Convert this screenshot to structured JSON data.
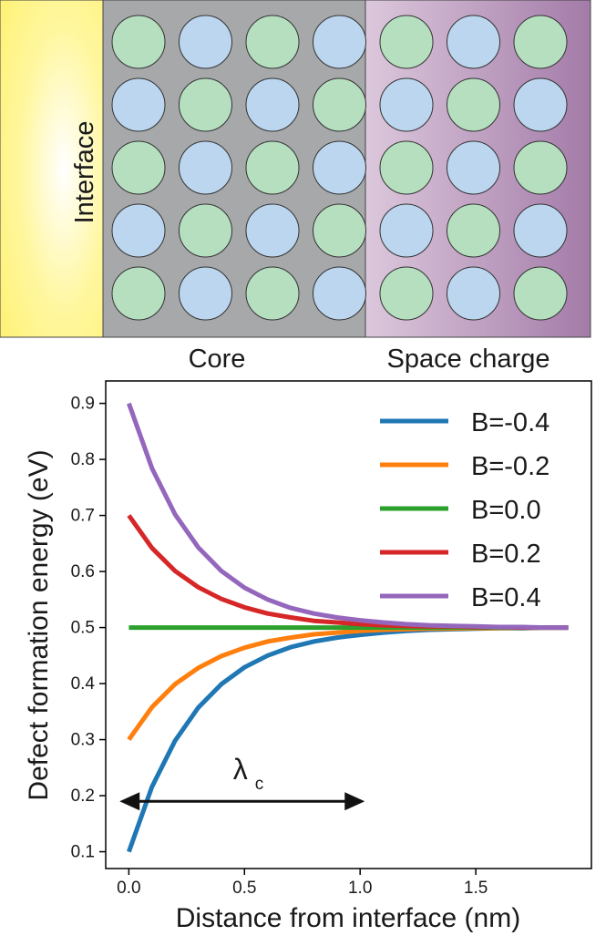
{
  "schematic": {
    "interface_label": "Interface",
    "core_label": "Core",
    "space_charge_label": "Space charge",
    "rows": 5,
    "cols": 7,
    "colors": {
      "interface_yellow": "#fff27a",
      "core_gray": "#a7a8aa",
      "space_charge_light": "#dcc8dc",
      "space_charge_dark": "#a37ba8",
      "green_atom": "#b6dfc0",
      "blue_atom": "#bcd6ef"
    }
  },
  "chart_data": {
    "type": "line",
    "title": "",
    "xlabel": "Distance from interface (nm)",
    "ylabel": "Defect formation energy (eV)",
    "xlim": [
      -0.1,
      2.0
    ],
    "ylim": [
      0.07,
      0.94
    ],
    "x_ticks": [
      0.0,
      0.5,
      1.0,
      1.5
    ],
    "x_tick_labels": [
      "0.0",
      "0.5",
      "1.0",
      "1.5"
    ],
    "y_ticks": [
      0.1,
      0.2,
      0.3,
      0.4,
      0.5,
      0.6,
      0.7,
      0.8,
      0.9
    ],
    "y_tick_labels": [
      "0.1",
      "0.2",
      "0.3",
      "0.4",
      "0.5",
      "0.6",
      "0.7",
      "0.8",
      "0.9"
    ],
    "grid": false,
    "legend_position": "top-right",
    "x": [
      0.0,
      0.1,
      0.2,
      0.3,
      0.4,
      0.5,
      0.6,
      0.7,
      0.8,
      0.9,
      1.0,
      1.1,
      1.2,
      1.3,
      1.4,
      1.5,
      1.6,
      1.7,
      1.8,
      1.9
    ],
    "series": [
      {
        "name": "B=-0.4",
        "color": "#1f77b4",
        "values": [
          0.1,
          0.216,
          0.298,
          0.357,
          0.399,
          0.429,
          0.45,
          0.465,
          0.475,
          0.482,
          0.487,
          0.491,
          0.494,
          0.496,
          0.497,
          0.498,
          0.499,
          0.499,
          0.5,
          0.5
        ]
      },
      {
        "name": "B=-0.2",
        "color": "#ff7f0e",
        "values": [
          0.3,
          0.358,
          0.399,
          0.428,
          0.449,
          0.464,
          0.475,
          0.482,
          0.488,
          0.491,
          0.494,
          0.496,
          0.497,
          0.498,
          0.498,
          0.499,
          0.499,
          0.5,
          0.5,
          0.5
        ]
      },
      {
        "name": "B=0.0",
        "color": "#2ca02c",
        "values": [
          0.5,
          0.5,
          0.5,
          0.5,
          0.5,
          0.5,
          0.5,
          0.5,
          0.5,
          0.5,
          0.5,
          0.5,
          0.5,
          0.5,
          0.5,
          0.5,
          0.5,
          0.5,
          0.5,
          0.5
        ]
      },
      {
        "name": "B=0.2",
        "color": "#d62728",
        "values": [
          0.7,
          0.642,
          0.601,
          0.572,
          0.551,
          0.536,
          0.525,
          0.518,
          0.512,
          0.509,
          0.506,
          0.504,
          0.503,
          0.502,
          0.502,
          0.501,
          0.501,
          0.5,
          0.5,
          0.5
        ]
      },
      {
        "name": "B=0.4",
        "color": "#9467bd",
        "values": [
          0.9,
          0.784,
          0.702,
          0.643,
          0.601,
          0.571,
          0.55,
          0.535,
          0.525,
          0.518,
          0.513,
          0.509,
          0.506,
          0.504,
          0.503,
          0.502,
          0.501,
          0.501,
          0.5,
          0.5
        ]
      }
    ],
    "annotation": {
      "label": "λ",
      "subscript": "c",
      "arrow_from_x": -0.04,
      "arrow_to_x": 1.02,
      "arrow_y": 0.19
    }
  }
}
